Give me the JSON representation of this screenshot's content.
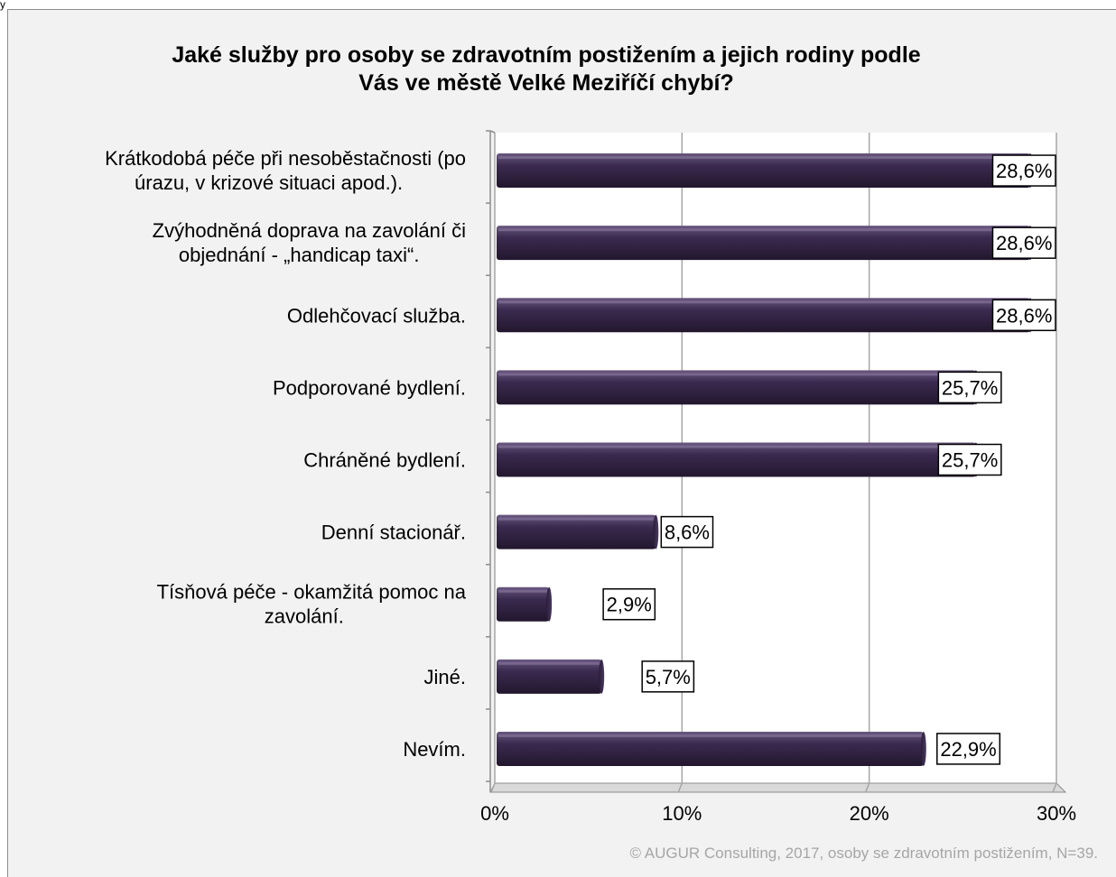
{
  "chart_data": {
    "type": "bar",
    "orientation": "horizontal",
    "title": "Jaké služby pro osoby se zdravotním postižením a jejich rodiny podle Vás ve městě Velké Meziříčí chybí?",
    "categories": [
      "Krátkodobá péče při nesoběstačnosti (po úrazu, v krizové situaci apod.).",
      "Zvýhodněná doprava na zavolání či objednání - „handicap taxi“.",
      "Odlehčovací služba.",
      "Podporované bydlení.",
      "Chráněné bydlení.",
      "Denní stacionář.",
      "Tísňová péče - okamžitá pomoc na zavolání.",
      "Jiné.",
      "Nevím."
    ],
    "category_lines": [
      [
        "Krátkodobá péče při nesoběstačnosti (po",
        "úrazu, v krizové situaci apod.)."
      ],
      [
        "Zvýhodněná doprava na zavolání či",
        "objednání - „handicap taxi“."
      ],
      [
        "Odlehčovací služba."
      ],
      [
        "Podporované bydlení."
      ],
      [
        "Chráněné bydlení."
      ],
      [
        "Denní stacionář."
      ],
      [
        "Tísňová péče - okamžitá pomoc na",
        "zavolání."
      ],
      [
        "Jiné."
      ],
      [
        "Nevím."
      ]
    ],
    "values": [
      28.6,
      28.6,
      28.6,
      25.7,
      25.7,
      8.6,
      2.9,
      5.7,
      22.9
    ],
    "data_labels": [
      "28,6%",
      "28,6%",
      "28,6%",
      "25,7%",
      "25,7%",
      "8,6%",
      "2,9%",
      "5,7%",
      "22,9%"
    ],
    "xlim": [
      0,
      30
    ],
    "xticks": [
      0,
      10,
      20,
      30
    ],
    "xtick_labels": [
      "0%",
      "10%",
      "20%",
      "30%"
    ],
    "grid": true,
    "bar_color": "#3b2a4f",
    "credit": "© AUGUR Consulting, 2017, osoby se zdravotním postižením, N=39."
  }
}
